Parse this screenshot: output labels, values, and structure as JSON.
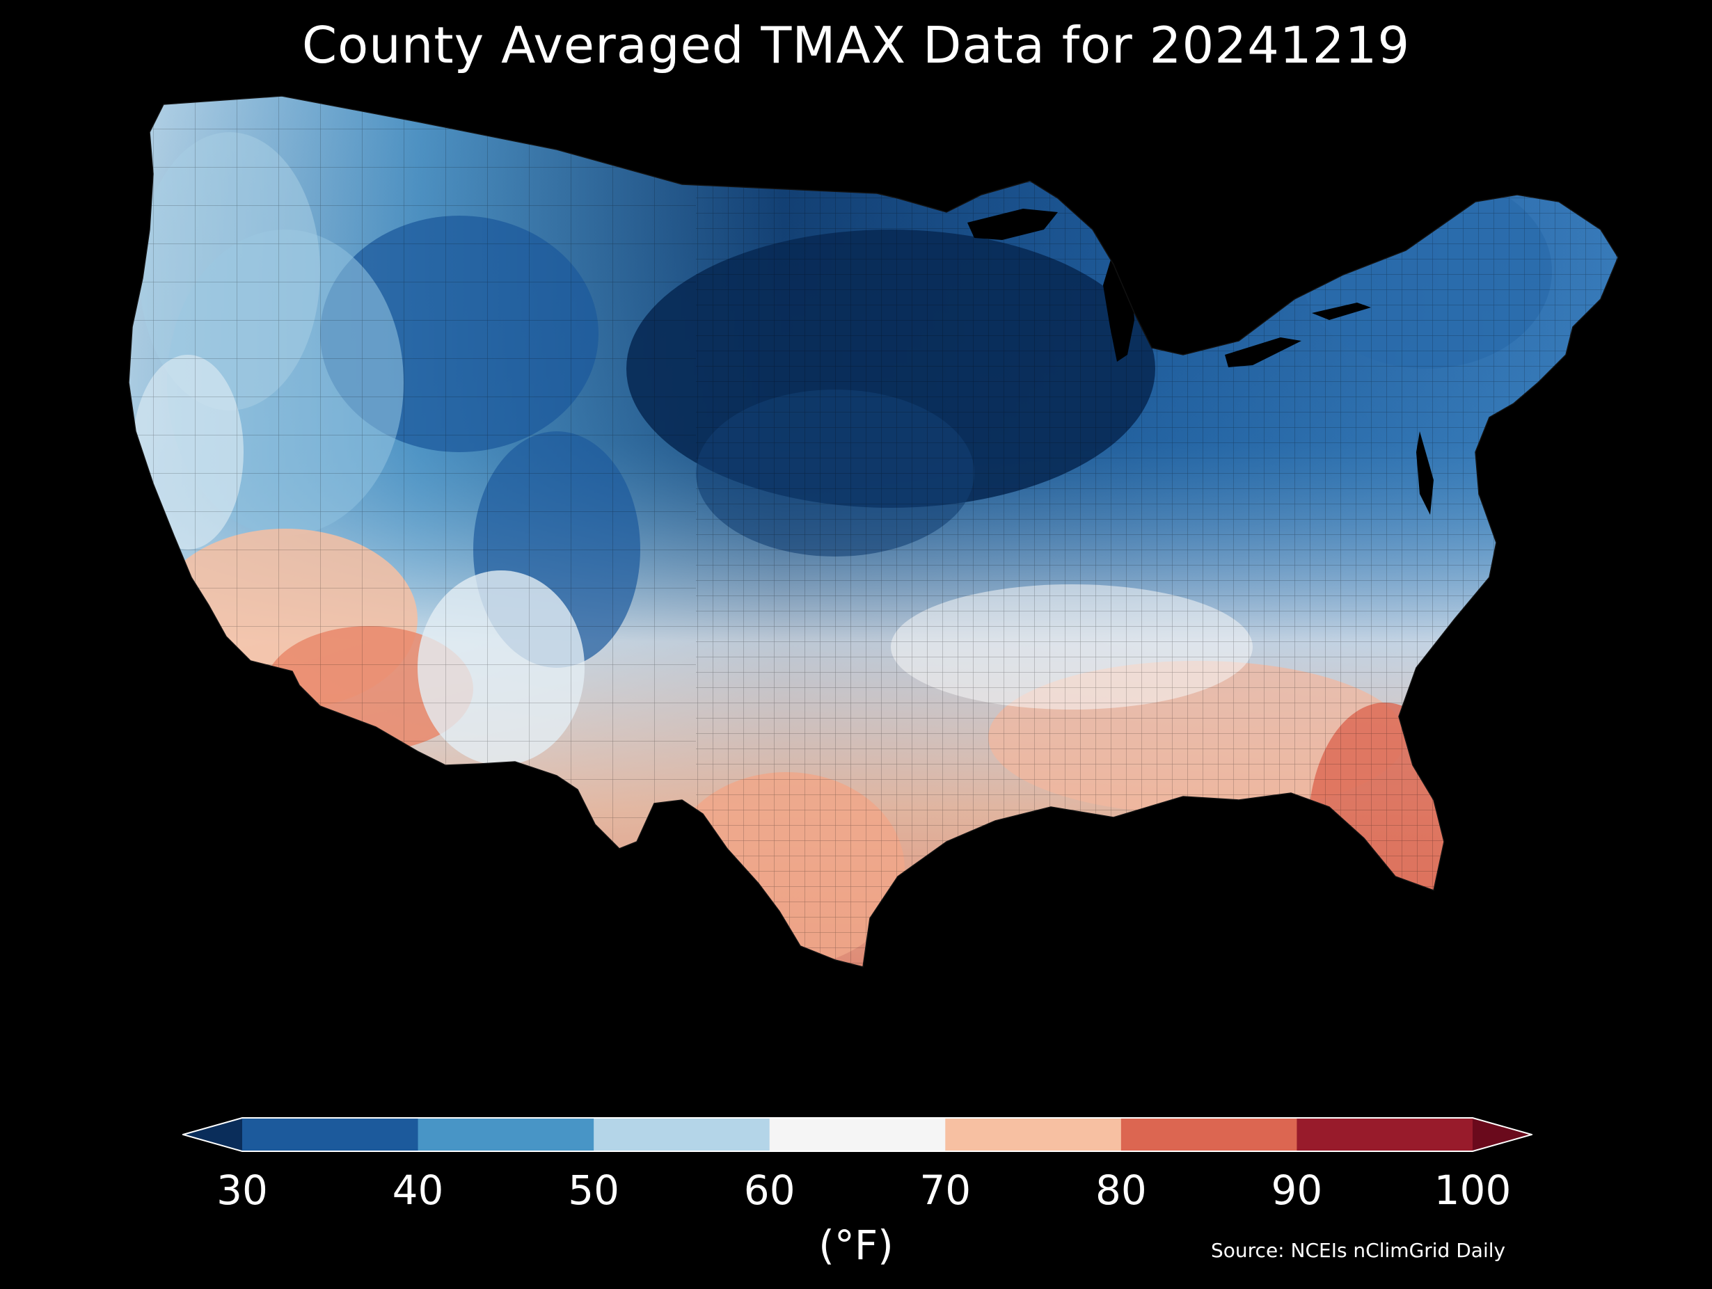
{
  "title": "County Averaged TMAX Data for 20241219",
  "colorbar": {
    "ticks": [
      "30",
      "40",
      "50",
      "60",
      "70",
      "80",
      "90",
      "100"
    ],
    "unit": "(°F)",
    "bins": [
      {
        "range": [
          30,
          40
        ],
        "color": "#1c5a9c"
      },
      {
        "range": [
          40,
          50
        ],
        "color": "#4895c6"
      },
      {
        "range": [
          50,
          60
        ],
        "color": "#b4d5e8"
      },
      {
        "range": [
          60,
          70
        ],
        "color": "#f5f5f5"
      },
      {
        "range": [
          70,
          80
        ],
        "color": "#f7c0a2"
      },
      {
        "range": [
          80,
          90
        ],
        "color": "#dc6651"
      },
      {
        "range": [
          90,
          100
        ],
        "color": "#981b2b"
      }
    ],
    "under_color": "#0a2d5a",
    "over_color": "#6a0a1c"
  },
  "source": "Source: NCEIs nClimGrid Daily",
  "map": {
    "region": "Contiguous United States counties",
    "variable": "TMAX",
    "background": "#000000",
    "regional_values_f": {
      "upper_midwest": 28,
      "great_lakes": 32,
      "northern_rockies": 38,
      "northeast": 40,
      "pacific_northwest": 50,
      "great_basin": 52,
      "central_plains": 45,
      "mid_atlantic": 55,
      "tennessee_valley": 63,
      "california_coast": 72,
      "desert_southwest": 78,
      "texas_south": 77,
      "gulf_coast": 76,
      "florida": 83
    }
  }
}
